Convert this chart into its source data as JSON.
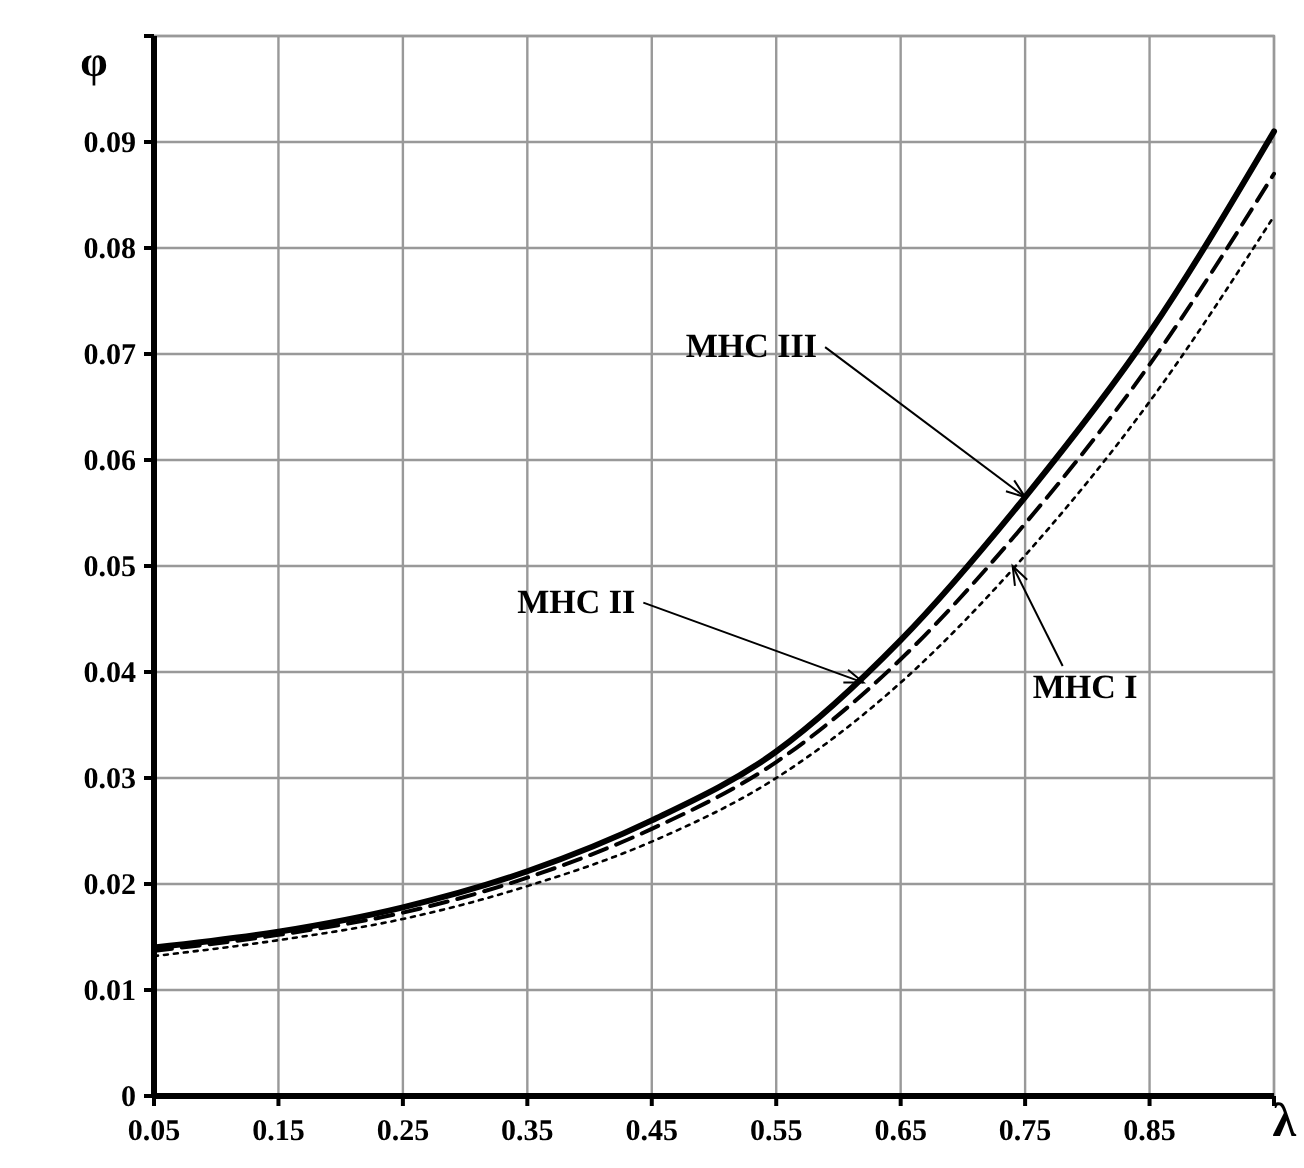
{
  "chart_data": {
    "type": "line",
    "xlabel": "λ",
    "ylabel": "φ",
    "x": [
      0.05,
      0.15,
      0.25,
      0.35,
      0.45,
      0.55,
      0.65,
      0.75,
      0.85,
      0.95
    ],
    "series": [
      {
        "color": "#000000",
        "line_style": "solid",
        "values": [
          0.014,
          0.0155,
          0.0178,
          0.0212,
          0.026,
          0.0325,
          0.043,
          0.0565,
          0.072,
          0.091
        ]
      },
      {
        "color": "#000000",
        "line_style": "dashed",
        "values": [
          0.0137,
          0.0152,
          0.0173,
          0.0206,
          0.0252,
          0.0315,
          0.0412,
          0.054,
          0.069,
          0.087
        ]
      },
      {
        "color": "#000000",
        "line_style": "dotted",
        "values": [
          0.0132,
          0.0147,
          0.0167,
          0.0198,
          0.024,
          0.03,
          0.039,
          0.051,
          0.0655,
          0.083
        ]
      }
    ],
    "annotations": [
      {
        "text": "MHC III",
        "x": 0.75,
        "y": 0.0565
      },
      {
        "text": "MHC II",
        "x": 0.62,
        "y": 0.039
      },
      {
        "text": "MHC I",
        "x": 0.74,
        "y": 0.05
      }
    ],
    "xlim": [
      0.05,
      0.95
    ],
    "ylim": [
      0,
      0.1
    ],
    "xticks": [
      0.05,
      0.15,
      0.25,
      0.35,
      0.45,
      0.55,
      0.65,
      0.75,
      0.85,
      {
        "value": 0.95,
        "label": null
      }
    ],
    "yticks": [
      0,
      0.01,
      0.02,
      0.03,
      0.04,
      0.05,
      0.06,
      0.07,
      0.08,
      0.09,
      {
        "value": 0.1,
        "label": null
      }
    ],
    "grid": true,
    "marker": "none"
  }
}
